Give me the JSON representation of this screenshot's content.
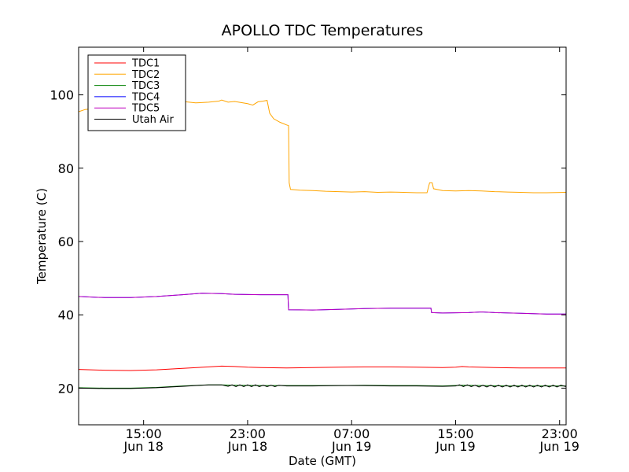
{
  "chart_data": {
    "type": "line",
    "title": "APOLLO TDC Temperatures",
    "xlabel": "Date (GMT)",
    "ylabel": "Temperature (C)",
    "xlim": [
      10.0,
      47.5
    ],
    "ylim": [
      10,
      113
    ],
    "yticks": [
      20,
      40,
      60,
      80,
      100
    ],
    "xticks": [
      {
        "x": 15,
        "line1": "15:00",
        "line2": "Jun 18"
      },
      {
        "x": 23,
        "line1": "23:00",
        "line2": "Jun 18"
      },
      {
        "x": 31,
        "line1": "07:00",
        "line2": "Jun 19"
      },
      {
        "x": 39,
        "line1": "15:00",
        "line2": "Jun 19"
      },
      {
        "x": 47,
        "line1": "23:00",
        "line2": "Jun 19"
      }
    ],
    "legend_position": "top-left",
    "series": [
      {
        "name": "TDC1",
        "color": "#ff0000",
        "points": [
          [
            10,
            25.1
          ],
          [
            12,
            24.9
          ],
          [
            14,
            24.8
          ],
          [
            16,
            25.0
          ],
          [
            18,
            25.4
          ],
          [
            20,
            25.8
          ],
          [
            21,
            26.0
          ],
          [
            22,
            25.9
          ],
          [
            23,
            25.7
          ],
          [
            24,
            25.6
          ],
          [
            26,
            25.5
          ],
          [
            28,
            25.6
          ],
          [
            30,
            25.7
          ],
          [
            32,
            25.8
          ],
          [
            34,
            25.8
          ],
          [
            36,
            25.7
          ],
          [
            38,
            25.6
          ],
          [
            39,
            25.7
          ],
          [
            39.5,
            25.9
          ],
          [
            40,
            25.8
          ],
          [
            42,
            25.6
          ],
          [
            44,
            25.5
          ],
          [
            47.5,
            25.5
          ]
        ]
      },
      {
        "name": "TDC2",
        "color": "#ffa500",
        "points": [
          [
            10,
            95.4
          ],
          [
            10.5,
            96.0
          ],
          [
            11,
            96.2
          ],
          [
            11.5,
            97.0
          ],
          [
            12,
            96.7
          ],
          [
            12.5,
            97.4
          ],
          [
            13,
            97.2
          ],
          [
            14,
            97.6
          ],
          [
            15,
            97.9
          ],
          [
            16,
            97.5
          ],
          [
            17,
            97.7
          ],
          [
            18,
            98.2
          ],
          [
            19,
            97.8
          ],
          [
            20,
            98.0
          ],
          [
            20.8,
            98.3
          ],
          [
            21,
            98.6
          ],
          [
            21.5,
            98.0
          ],
          [
            22,
            98.2
          ],
          [
            22.5,
            97.9
          ],
          [
            23,
            97.6
          ],
          [
            23.4,
            97.2
          ],
          [
            23.8,
            98.1
          ],
          [
            24.2,
            98.3
          ],
          [
            24.5,
            98.5
          ],
          [
            24.7,
            95.0
          ],
          [
            25,
            93.5
          ],
          [
            25.5,
            92.5
          ],
          [
            26,
            91.8
          ],
          [
            26.15,
            91.6
          ],
          [
            26.2,
            76.0
          ],
          [
            26.3,
            74.2
          ],
          [
            27,
            74.0
          ],
          [
            28,
            73.9
          ],
          [
            29,
            73.7
          ],
          [
            30,
            73.6
          ],
          [
            31,
            73.5
          ],
          [
            32,
            73.6
          ],
          [
            33,
            73.4
          ],
          [
            34,
            73.5
          ],
          [
            35,
            73.4
          ],
          [
            36,
            73.3
          ],
          [
            36.8,
            73.3
          ],
          [
            37.0,
            76.0
          ],
          [
            37.2,
            76.0
          ],
          [
            37.3,
            74.4
          ],
          [
            38,
            73.9
          ],
          [
            39,
            73.8
          ],
          [
            40,
            73.9
          ],
          [
            41,
            73.8
          ],
          [
            42,
            73.6
          ],
          [
            43,
            73.5
          ],
          [
            44,
            73.4
          ],
          [
            45,
            73.3
          ],
          [
            46,
            73.3
          ],
          [
            47.5,
            73.4
          ]
        ]
      },
      {
        "name": "TDC3",
        "color": "#008000",
        "points": [
          [
            10,
            20.1
          ],
          [
            12,
            20.0
          ],
          [
            14,
            20.0
          ],
          [
            16,
            20.2
          ],
          [
            18,
            20.6
          ],
          [
            20,
            20.9
          ],
          [
            21,
            20.9
          ],
          [
            22,
            20.8
          ],
          [
            24,
            20.7
          ],
          [
            26,
            20.7
          ],
          [
            28,
            20.7
          ],
          [
            30,
            20.7
          ],
          [
            32,
            20.8
          ],
          [
            34,
            20.7
          ],
          [
            36,
            20.7
          ],
          [
            38,
            20.6
          ],
          [
            39.5,
            20.8
          ],
          [
            41,
            20.7
          ],
          [
            43,
            20.6
          ],
          [
            45,
            20.6
          ],
          [
            47.5,
            20.6
          ]
        ]
      },
      {
        "name": "TDC4",
        "color": "#0000ff",
        "points": [
          [
            10,
            45.0
          ],
          [
            12,
            44.7
          ],
          [
            14,
            44.7
          ],
          [
            16,
            45.0
          ],
          [
            18,
            45.5
          ],
          [
            19.5,
            45.9
          ],
          [
            21,
            45.8
          ],
          [
            22,
            45.6
          ],
          [
            24,
            45.5
          ],
          [
            26.1,
            45.5
          ],
          [
            26.15,
            41.4
          ],
          [
            28,
            41.3
          ],
          [
            30,
            41.5
          ],
          [
            32,
            41.7
          ],
          [
            34,
            41.8
          ],
          [
            36,
            41.8
          ],
          [
            37.1,
            41.8
          ],
          [
            37.15,
            40.6
          ],
          [
            38,
            40.5
          ],
          [
            40,
            40.6
          ],
          [
            41,
            40.8
          ],
          [
            42,
            40.6
          ],
          [
            44,
            40.4
          ],
          [
            46,
            40.2
          ],
          [
            47.5,
            40.2
          ]
        ]
      },
      {
        "name": "TDC5",
        "color": "#bf00bf",
        "points": [
          [
            10,
            45.0
          ],
          [
            12,
            44.7
          ],
          [
            14,
            44.7
          ],
          [
            16,
            45.0
          ],
          [
            18,
            45.5
          ],
          [
            19.5,
            45.9
          ],
          [
            21,
            45.8
          ],
          [
            22,
            45.6
          ],
          [
            24,
            45.5
          ],
          [
            26.1,
            45.5
          ],
          [
            26.15,
            41.4
          ],
          [
            28,
            41.3
          ],
          [
            30,
            41.5
          ],
          [
            32,
            41.7
          ],
          [
            34,
            41.8
          ],
          [
            36,
            41.8
          ],
          [
            37.1,
            41.8
          ],
          [
            37.15,
            40.6
          ],
          [
            38,
            40.5
          ],
          [
            40,
            40.6
          ],
          [
            41,
            40.8
          ],
          [
            42,
            40.6
          ],
          [
            44,
            40.4
          ],
          [
            46,
            40.2
          ],
          [
            47.5,
            40.2
          ]
        ]
      },
      {
        "name": "Utah Air",
        "color": "#000000",
        "points": [
          [
            10,
            20.0
          ],
          [
            12,
            19.9
          ],
          [
            14,
            19.9
          ],
          [
            16,
            20.1
          ],
          [
            18,
            20.5
          ],
          [
            20,
            20.9
          ],
          [
            21,
            20.9
          ],
          [
            21.5,
            20.5
          ],
          [
            21.8,
            20.9
          ],
          [
            22.1,
            20.4
          ],
          [
            22.4,
            20.9
          ],
          [
            22.7,
            20.4
          ],
          [
            23.0,
            20.9
          ],
          [
            23.3,
            20.4
          ],
          [
            23.6,
            20.9
          ],
          [
            23.9,
            20.4
          ],
          [
            24.2,
            20.8
          ],
          [
            24.5,
            20.4
          ],
          [
            24.8,
            20.8
          ],
          [
            25.1,
            20.4
          ],
          [
            25.4,
            20.8
          ],
          [
            26,
            20.6
          ],
          [
            28,
            20.6
          ],
          [
            30,
            20.7
          ],
          [
            32,
            20.7
          ],
          [
            34,
            20.6
          ],
          [
            36,
            20.6
          ],
          [
            38,
            20.5
          ],
          [
            39,
            20.6
          ],
          [
            39.3,
            20.9
          ],
          [
            39.6,
            20.4
          ],
          [
            39.9,
            20.9
          ],
          [
            40.2,
            20.4
          ],
          [
            40.5,
            20.8
          ],
          [
            40.8,
            20.3
          ],
          [
            41.1,
            20.8
          ],
          [
            41.4,
            20.3
          ],
          [
            41.7,
            20.8
          ],
          [
            42.0,
            20.3
          ],
          [
            42.3,
            20.8
          ],
          [
            42.6,
            20.3
          ],
          [
            42.9,
            20.8
          ],
          [
            43.2,
            20.3
          ],
          [
            43.5,
            20.8
          ],
          [
            43.8,
            20.3
          ],
          [
            44.1,
            20.8
          ],
          [
            44.4,
            20.3
          ],
          [
            44.7,
            20.8
          ],
          [
            45.0,
            20.3
          ],
          [
            45.3,
            20.8
          ],
          [
            45.6,
            20.3
          ],
          [
            45.9,
            20.8
          ],
          [
            46.2,
            20.3
          ],
          [
            46.5,
            20.8
          ],
          [
            46.8,
            20.3
          ],
          [
            47.1,
            20.8
          ],
          [
            47.5,
            20.4
          ]
        ]
      }
    ]
  }
}
